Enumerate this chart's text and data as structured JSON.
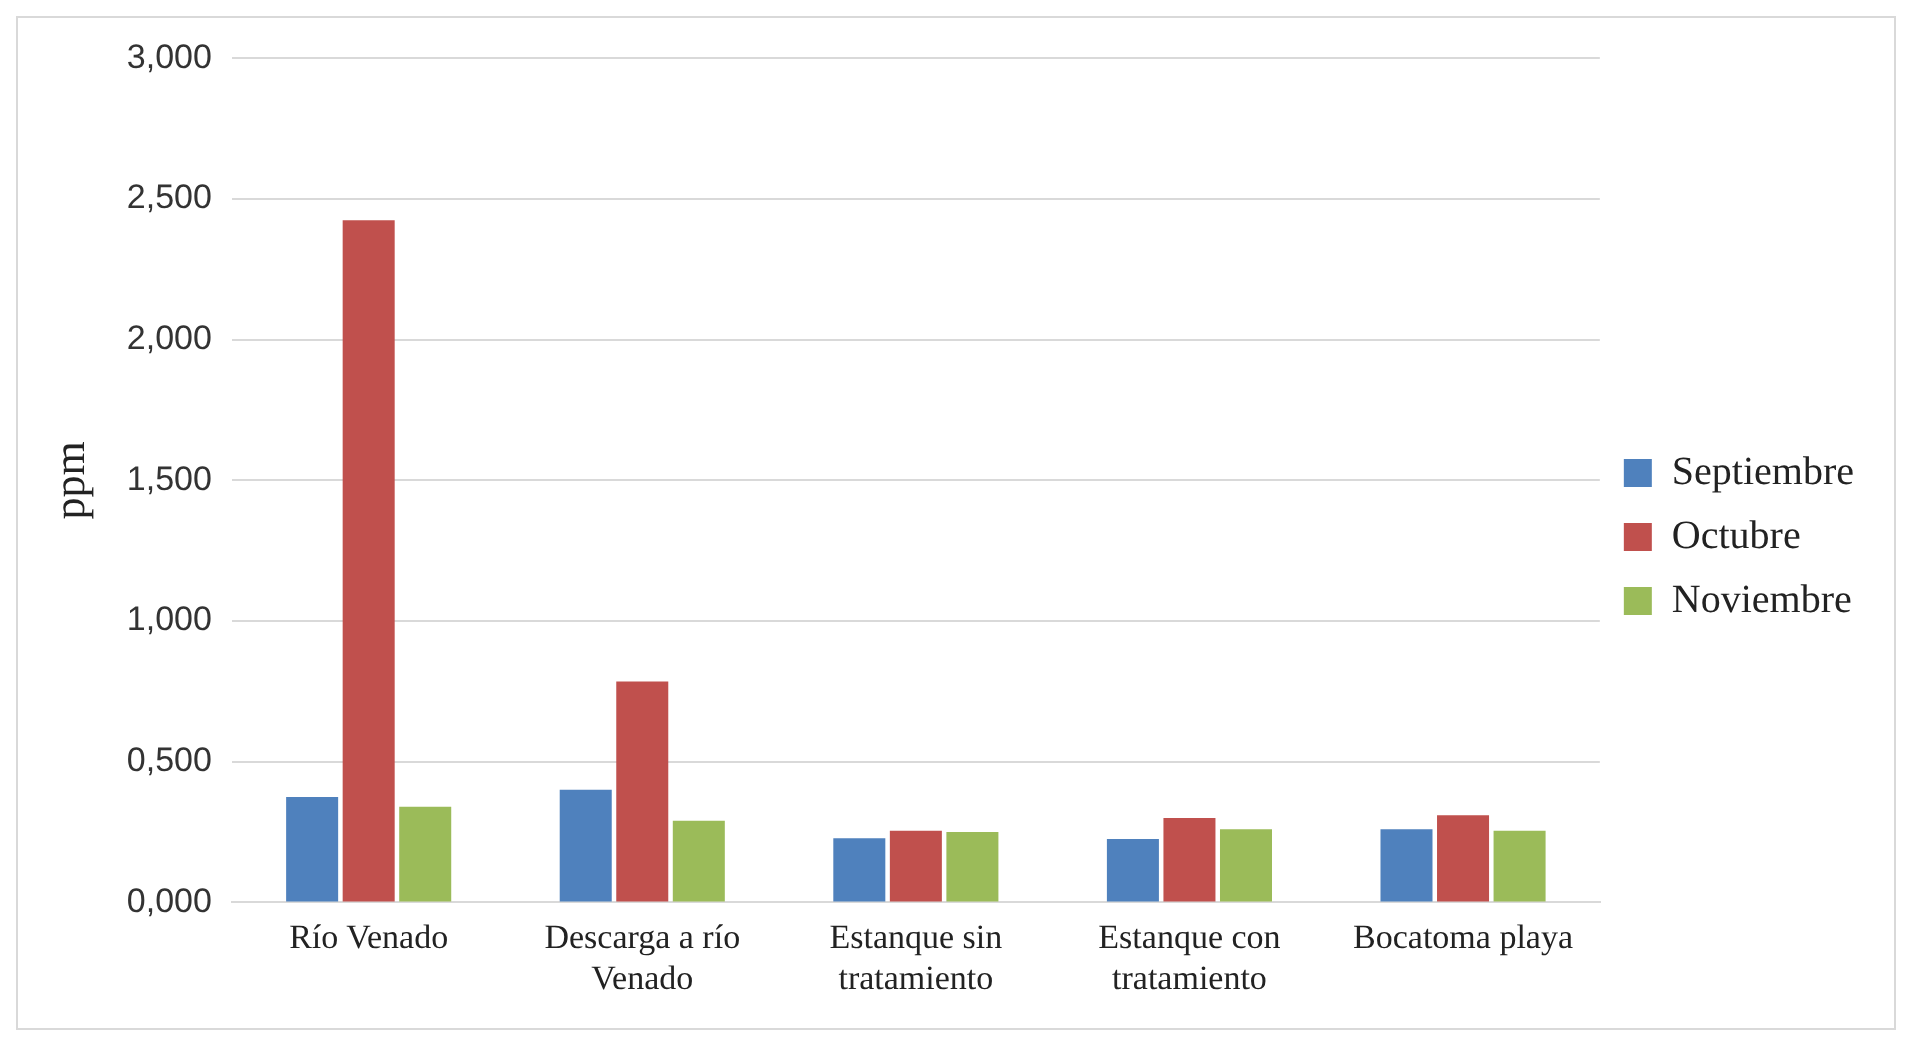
{
  "chart_data": {
    "type": "bar",
    "ylabel": "ppm",
    "categories": [
      "Río Venado",
      "Descarga a río Venado",
      "Estanque sin tratamiento",
      "Estanque con tratamiento",
      "Bocatoma playa"
    ],
    "series": [
      {
        "name": "Septiembre",
        "color": "#4f81bd",
        "values": [
          0.375,
          0.4,
          0.228,
          0.225,
          0.26
        ]
      },
      {
        "name": "Octubre",
        "color": "#c0504d",
        "values": [
          2.425,
          0.785,
          0.255,
          0.3,
          0.31
        ]
      },
      {
        "name": "Noviembre",
        "color": "#9bbb59",
        "values": [
          0.34,
          0.29,
          0.25,
          0.26,
          0.255
        ]
      }
    ],
    "ylim": [
      0,
      3
    ],
    "yticks": [
      {
        "value": 0,
        "label": "0,000"
      },
      {
        "value": 0.5,
        "label": "0,500"
      },
      {
        "value": 1,
        "label": "1,000"
      },
      {
        "value": 1.5,
        "label": "1,500"
      },
      {
        "value": 2,
        "label": "2,000"
      },
      {
        "value": 2.5,
        "label": "2,500"
      },
      {
        "value": 3,
        "label": "3,000"
      }
    ],
    "grid": "y",
    "legend": "right"
  }
}
